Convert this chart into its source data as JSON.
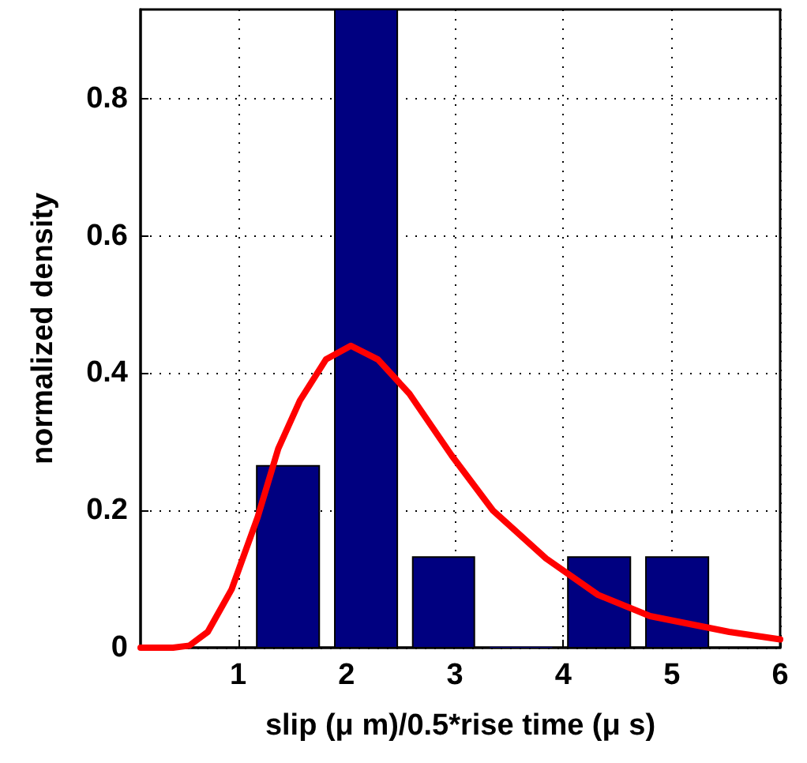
{
  "chart_data": {
    "type": "histogram",
    "xlabel": "slip (μ m)/0.5*rise time (μ s)",
    "ylabel": "normalized density",
    "xlim": [
      0.1,
      6
    ],
    "xticks": [
      1,
      2,
      3,
      4,
      5,
      6
    ],
    "ylim": [
      0,
      0.93
    ],
    "yticks": [
      0,
      0.2,
      0.4,
      0.6,
      0.8
    ],
    "grid": true,
    "series": [
      {
        "type": "histogram",
        "color": "#000080",
        "bins": [
          1.1,
          1.82,
          2.54,
          3.25,
          3.97,
          4.69,
          5.41
        ],
        "values": [
          0.265,
          0.93,
          0.132,
          0,
          0.132,
          0.132
        ]
      },
      {
        "type": "line",
        "color": "#ff0000",
        "x": [
          0.1,
          0.4,
          0.55,
          0.72,
          0.94,
          1.18,
          1.37,
          1.57,
          1.81,
          2.04,
          2.29,
          2.58,
          2.97,
          3.35,
          3.84,
          4.32,
          4.8,
          5.53,
          6
        ],
        "values": [
          0,
          0,
          0.003,
          0.023,
          0.085,
          0.19,
          0.29,
          0.36,
          0.42,
          0.44,
          0.42,
          0.37,
          0.28,
          0.2,
          0.13,
          0.077,
          0.046,
          0.023,
          0.012
        ]
      }
    ]
  }
}
